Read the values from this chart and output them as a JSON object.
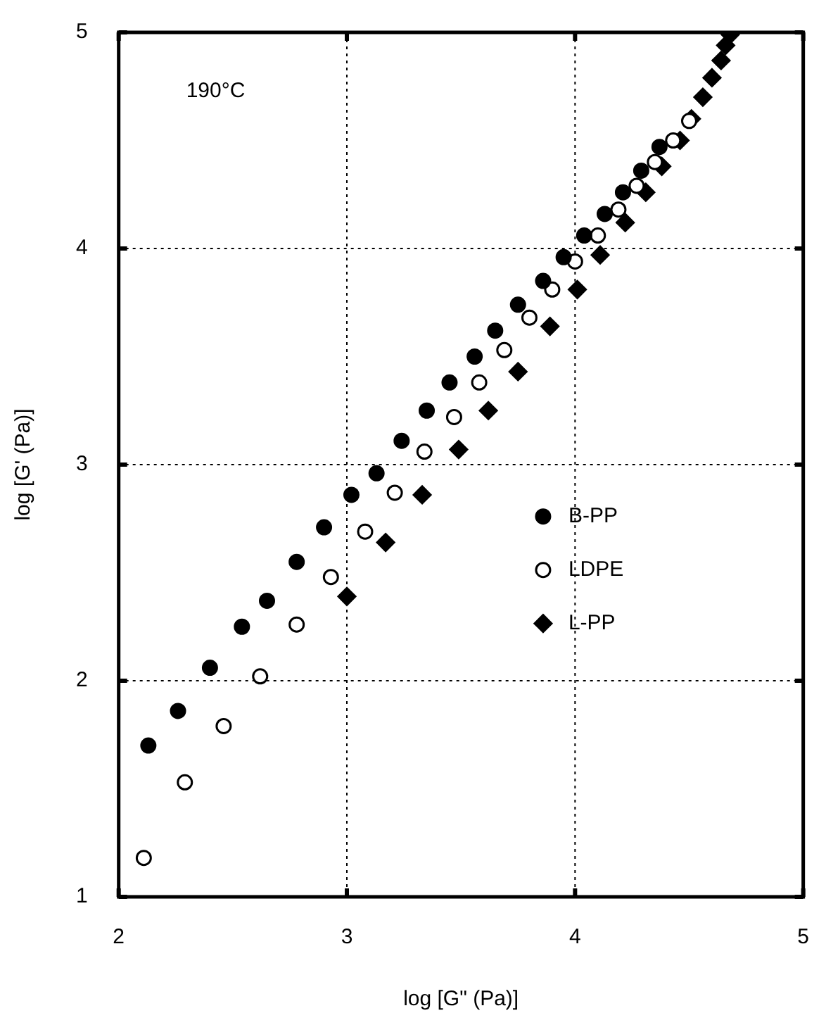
{
  "chart_data": {
    "type": "scatter",
    "xlabel": "log [G\" (Pa)]",
    "ylabel": "log [G' (Pa)]",
    "xlim": [
      2,
      5
    ],
    "xticks": [
      2,
      3,
      4,
      5
    ],
    "ylim": [
      1,
      5
    ],
    "yticks": [
      1,
      2,
      3,
      4,
      5
    ],
    "grid": true,
    "legend": "right",
    "annotations": [
      "190°C"
    ],
    "series": [
      {
        "name": "B-PP",
        "color": "#000000",
        "marker": "circle",
        "x": [
          2.13,
          2.26,
          2.4,
          2.54,
          2.65,
          2.78,
          2.9,
          3.02,
          3.13,
          3.24,
          3.35,
          3.45,
          3.56,
          3.65,
          3.75,
          3.86,
          3.95,
          4.04,
          4.13,
          4.21,
          4.29,
          4.37
        ],
        "values": [
          1.7,
          1.86,
          2.06,
          2.25,
          2.37,
          2.55,
          2.71,
          2.86,
          2.96,
          3.11,
          3.25,
          3.38,
          3.5,
          3.62,
          3.74,
          3.85,
          3.96,
          4.06,
          4.16,
          4.26,
          4.36,
          4.47
        ]
      },
      {
        "name": "LDPE",
        "color": "#ffffff",
        "marker": "circle",
        "x": [
          2.11,
          2.29,
          2.46,
          2.62,
          2.78,
          2.93,
          3.08,
          3.21,
          3.34,
          3.47,
          3.58,
          3.69,
          3.8,
          3.9,
          4.0,
          4.1,
          4.19,
          4.27,
          4.35,
          4.43,
          4.5
        ],
        "values": [
          1.18,
          1.53,
          1.79,
          2.02,
          2.26,
          2.48,
          2.69,
          2.87,
          3.06,
          3.22,
          3.38,
          3.53,
          3.68,
          3.81,
          3.94,
          4.06,
          4.18,
          4.29,
          4.4,
          4.5,
          4.59
        ]
      },
      {
        "name": "L-PP",
        "color": "#000000",
        "marker": "diamond",
        "x": [
          3.0,
          3.17,
          3.33,
          3.49,
          3.62,
          3.75,
          3.89,
          4.01,
          4.11,
          4.22,
          4.31,
          4.38,
          4.46,
          4.51,
          4.56,
          4.6,
          4.64,
          4.66,
          4.68
        ],
        "values": [
          2.39,
          2.64,
          2.86,
          3.07,
          3.25,
          3.43,
          3.64,
          3.81,
          3.97,
          4.12,
          4.26,
          4.38,
          4.5,
          4.6,
          4.7,
          4.79,
          4.87,
          4.94,
          4.99
        ]
      }
    ]
  }
}
